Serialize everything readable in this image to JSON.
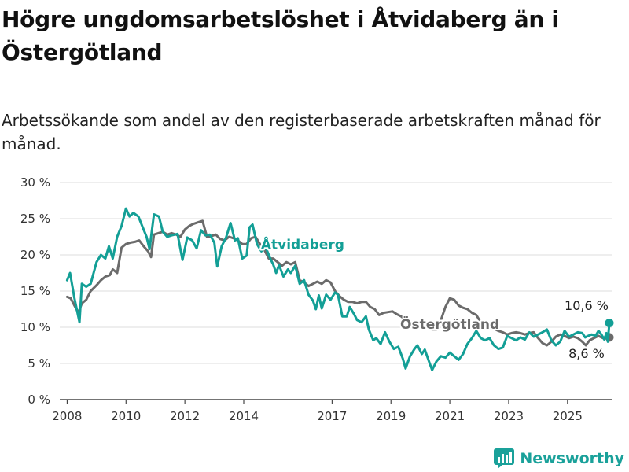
{
  "title": "Högre ungdomsarbetslöshet i Åtvidaberg än i Östergötland",
  "subtitle": "Arbetssökande som andel av den registerbaserade arbetskraften månad för månad.",
  "brand": "Newsworthy",
  "colors": {
    "atvidaberg": "#139f96",
    "ostergotland": "#6b6b6b",
    "grid": "#dddddd",
    "brand": "#1aa19a"
  },
  "chart_data": {
    "type": "line",
    "title": "Högre ungdomsarbetslöshet i Åtvidaberg än i Östergötland",
    "subtitle": "Arbetssökande som andel av den registerbaserade arbetskraften månad för månad.",
    "xlabel": "",
    "ylabel": "",
    "y_unit": "%",
    "ylim": [
      0,
      30
    ],
    "xlim": [
      2007.75,
      2026.5
    ],
    "y_ticks": [
      0,
      5,
      10,
      15,
      20,
      25,
      30
    ],
    "y_tick_labels": [
      "0 %",
      "5 %",
      "10 %",
      "15 %",
      "20 %",
      "25 %",
      "30 %"
    ],
    "x_ticks": [
      2008,
      2010,
      2012,
      2014,
      2017,
      2019,
      2021,
      2023,
      2025
    ],
    "x_tick_labels": [
      "2008",
      "2010",
      "2012",
      "2014",
      "2017",
      "2019",
      "2021",
      "2023",
      "2025"
    ],
    "grid": "horizontal",
    "legend": "inline labels",
    "series": [
      {
        "name": "Åtvidaberg",
        "color": "#139f96",
        "end_label": "10,6 %",
        "points": [
          [
            2008.0,
            16.5
          ],
          [
            2008.1,
            17.5
          ],
          [
            2008.25,
            14.0
          ],
          [
            2008.42,
            10.7
          ],
          [
            2008.5,
            16.0
          ],
          [
            2008.65,
            15.6
          ],
          [
            2008.8,
            16.0
          ],
          [
            2009.0,
            19.0
          ],
          [
            2009.15,
            20.0
          ],
          [
            2009.3,
            19.5
          ],
          [
            2009.42,
            21.2
          ],
          [
            2009.55,
            19.5
          ],
          [
            2009.7,
            22.5
          ],
          [
            2009.85,
            24.0
          ],
          [
            2010.0,
            26.4
          ],
          [
            2010.12,
            25.3
          ],
          [
            2010.25,
            25.8
          ],
          [
            2010.42,
            25.3
          ],
          [
            2010.55,
            24.0
          ],
          [
            2010.7,
            22.5
          ],
          [
            2010.8,
            20.8
          ],
          [
            2010.95,
            25.6
          ],
          [
            2011.12,
            25.3
          ],
          [
            2011.25,
            23.2
          ],
          [
            2011.4,
            22.5
          ],
          [
            2011.55,
            22.7
          ],
          [
            2011.75,
            22.9
          ],
          [
            2011.92,
            19.3
          ],
          [
            2012.08,
            22.4
          ],
          [
            2012.25,
            22.0
          ],
          [
            2012.4,
            20.9
          ],
          [
            2012.55,
            23.4
          ],
          [
            2012.7,
            22.7
          ],
          [
            2012.85,
            22.8
          ],
          [
            2013.0,
            21.7
          ],
          [
            2013.1,
            18.4
          ],
          [
            2013.25,
            21.2
          ],
          [
            2013.4,
            22.4
          ],
          [
            2013.55,
            24.4
          ],
          [
            2013.7,
            22.0
          ],
          [
            2013.8,
            22.3
          ],
          [
            2013.95,
            19.5
          ],
          [
            2014.1,
            19.9
          ],
          [
            2014.2,
            23.8
          ],
          [
            2014.3,
            24.2
          ],
          [
            2014.45,
            21.5
          ],
          [
            2014.6,
            20.5
          ],
          [
            2014.75,
            21.0
          ],
          [
            2014.9,
            19.5
          ],
          [
            2015.0,
            18.7
          ],
          [
            2015.1,
            17.5
          ],
          [
            2015.2,
            18.6
          ],
          [
            2015.35,
            17.0
          ],
          [
            2015.5,
            18.0
          ],
          [
            2015.6,
            17.5
          ],
          [
            2015.75,
            18.5
          ],
          [
            2015.9,
            16.0
          ],
          [
            2016.05,
            16.5
          ],
          [
            2016.2,
            14.5
          ],
          [
            2016.35,
            13.7
          ],
          [
            2016.45,
            12.5
          ],
          [
            2016.55,
            14.4
          ],
          [
            2016.65,
            12.6
          ],
          [
            2016.8,
            14.5
          ],
          [
            2016.95,
            13.8
          ],
          [
            2017.1,
            14.8
          ],
          [
            2017.2,
            14.5
          ],
          [
            2017.35,
            11.5
          ],
          [
            2017.5,
            11.5
          ],
          [
            2017.6,
            12.8
          ],
          [
            2017.75,
            11.8
          ],
          [
            2017.85,
            11.0
          ],
          [
            2018.0,
            10.7
          ],
          [
            2018.15,
            11.5
          ],
          [
            2018.25,
            9.7
          ],
          [
            2018.4,
            8.2
          ],
          [
            2018.5,
            8.5
          ],
          [
            2018.65,
            7.7
          ],
          [
            2018.8,
            9.3
          ],
          [
            2018.95,
            8.0
          ],
          [
            2019.1,
            7.0
          ],
          [
            2019.25,
            7.3
          ],
          [
            2019.4,
            5.7
          ],
          [
            2019.5,
            4.3
          ],
          [
            2019.65,
            6.0
          ],
          [
            2019.8,
            7.0
          ],
          [
            2019.9,
            7.5
          ],
          [
            2020.05,
            6.3
          ],
          [
            2020.15,
            6.9
          ],
          [
            2020.3,
            5.2
          ],
          [
            2020.4,
            4.1
          ],
          [
            2020.55,
            5.3
          ],
          [
            2020.7,
            6.0
          ],
          [
            2020.85,
            5.8
          ],
          [
            2021.0,
            6.5
          ],
          [
            2021.15,
            6.0
          ],
          [
            2021.3,
            5.5
          ],
          [
            2021.45,
            6.3
          ],
          [
            2021.6,
            7.7
          ],
          [
            2021.75,
            8.5
          ],
          [
            2021.9,
            9.5
          ],
          [
            2022.05,
            8.5
          ],
          [
            2022.2,
            8.2
          ],
          [
            2022.35,
            8.5
          ],
          [
            2022.5,
            7.5
          ],
          [
            2022.65,
            7.0
          ],
          [
            2022.8,
            7.2
          ],
          [
            2022.95,
            8.8
          ],
          [
            2023.1,
            8.5
          ],
          [
            2023.25,
            8.2
          ],
          [
            2023.4,
            8.6
          ],
          [
            2023.55,
            8.3
          ],
          [
            2023.7,
            9.3
          ],
          [
            2023.85,
            8.7
          ],
          [
            2024.0,
            9.0
          ],
          [
            2024.15,
            9.3
          ],
          [
            2024.3,
            9.7
          ],
          [
            2024.45,
            8.2
          ],
          [
            2024.6,
            7.5
          ],
          [
            2024.75,
            8.0
          ],
          [
            2024.9,
            9.5
          ],
          [
            2025.05,
            8.7
          ],
          [
            2025.2,
            9.0
          ],
          [
            2025.35,
            9.3
          ],
          [
            2025.5,
            9.2
          ],
          [
            2025.6,
            8.6
          ],
          [
            2025.7,
            8.8
          ],
          [
            2025.82,
            9.0
          ],
          [
            2025.95,
            8.8
          ],
          [
            2026.05,
            9.5
          ],
          [
            2026.15,
            9.0
          ],
          [
            2026.25,
            8.3
          ],
          [
            2026.32,
            9.2
          ],
          [
            2026.37,
            8.0
          ],
          [
            2026.42,
            10.6
          ]
        ]
      },
      {
        "name": "Östergötland",
        "color": "#6b6b6b",
        "end_label": "8,6 %",
        "points": [
          [
            2008.0,
            14.2
          ],
          [
            2008.12,
            14.0
          ],
          [
            2008.25,
            13.0
          ],
          [
            2008.38,
            12.0
          ],
          [
            2008.5,
            13.3
          ],
          [
            2008.65,
            13.8
          ],
          [
            2008.8,
            15.0
          ],
          [
            2009.0,
            15.8
          ],
          [
            2009.15,
            16.5
          ],
          [
            2009.3,
            17.0
          ],
          [
            2009.45,
            17.2
          ],
          [
            2009.55,
            18.0
          ],
          [
            2009.7,
            17.5
          ],
          [
            2009.85,
            21.0
          ],
          [
            2010.0,
            21.5
          ],
          [
            2010.15,
            21.7
          ],
          [
            2010.3,
            21.8
          ],
          [
            2010.45,
            22.0
          ],
          [
            2010.6,
            21.2
          ],
          [
            2010.75,
            20.5
          ],
          [
            2010.85,
            19.7
          ],
          [
            2010.95,
            22.8
          ],
          [
            2011.1,
            23.0
          ],
          [
            2011.25,
            23.2
          ],
          [
            2011.4,
            22.8
          ],
          [
            2011.55,
            23.0
          ],
          [
            2011.7,
            22.8
          ],
          [
            2011.85,
            22.5
          ],
          [
            2012.0,
            23.5
          ],
          [
            2012.15,
            24.0
          ],
          [
            2012.3,
            24.3
          ],
          [
            2012.45,
            24.5
          ],
          [
            2012.6,
            24.7
          ],
          [
            2012.75,
            22.5
          ],
          [
            2012.9,
            22.6
          ],
          [
            2013.05,
            22.8
          ],
          [
            2013.2,
            22.2
          ],
          [
            2013.35,
            22.0
          ],
          [
            2013.5,
            22.5
          ],
          [
            2013.65,
            22.3
          ],
          [
            2013.8,
            22.0
          ],
          [
            2013.95,
            21.5
          ],
          [
            2014.1,
            21.5
          ],
          [
            2014.25,
            22.3
          ],
          [
            2014.4,
            22.5
          ],
          [
            2014.55,
            21.5
          ],
          [
            2014.7,
            20.7
          ],
          [
            2014.85,
            19.5
          ],
          [
            2015.0,
            19.5
          ],
          [
            2015.15,
            19.0
          ],
          [
            2015.3,
            18.5
          ],
          [
            2015.45,
            19.0
          ],
          [
            2015.6,
            18.7
          ],
          [
            2015.75,
            19.0
          ],
          [
            2015.9,
            16.5
          ],
          [
            2016.05,
            16.2
          ],
          [
            2016.2,
            15.7
          ],
          [
            2016.35,
            16.0
          ],
          [
            2016.5,
            16.3
          ],
          [
            2016.65,
            16.0
          ],
          [
            2016.8,
            16.5
          ],
          [
            2016.95,
            16.2
          ],
          [
            2017.1,
            15.0
          ],
          [
            2017.25,
            14.3
          ],
          [
            2017.4,
            13.8
          ],
          [
            2017.55,
            13.5
          ],
          [
            2017.7,
            13.5
          ],
          [
            2017.85,
            13.3
          ],
          [
            2018.0,
            13.5
          ],
          [
            2018.15,
            13.5
          ],
          [
            2018.3,
            12.8
          ],
          [
            2018.45,
            12.5
          ],
          [
            2018.6,
            11.7
          ],
          [
            2018.75,
            12.0
          ],
          [
            2018.9,
            12.1
          ],
          [
            2019.05,
            12.2
          ],
          [
            2019.2,
            11.8
          ],
          [
            2019.35,
            11.5
          ],
          [
            2019.5,
            11.0
          ],
          [
            2019.65,
            10.8
          ],
          [
            2019.8,
            10.3
          ],
          [
            2019.95,
            10.0
          ],
          [
            2020.1,
            10.3
          ],
          [
            2020.25,
            10.0
          ],
          [
            2020.4,
            9.7
          ],
          [
            2020.55,
            9.7
          ],
          [
            2020.7,
            11.0
          ],
          [
            2020.85,
            12.8
          ],
          [
            2021.0,
            14.0
          ],
          [
            2021.15,
            13.8
          ],
          [
            2021.3,
            13.0
          ],
          [
            2021.45,
            12.7
          ],
          [
            2021.6,
            12.5
          ],
          [
            2021.75,
            12.0
          ],
          [
            2021.9,
            11.7
          ],
          [
            2022.05,
            10.7
          ],
          [
            2022.2,
            10.5
          ],
          [
            2022.35,
            10.3
          ],
          [
            2022.5,
            9.8
          ],
          [
            2022.65,
            9.5
          ],
          [
            2022.8,
            9.3
          ],
          [
            2022.95,
            9.0
          ],
          [
            2023.1,
            9.2
          ],
          [
            2023.25,
            9.3
          ],
          [
            2023.4,
            9.2
          ],
          [
            2023.55,
            9.0
          ],
          [
            2023.7,
            9.2
          ],
          [
            2023.85,
            9.3
          ],
          [
            2024.0,
            8.5
          ],
          [
            2024.15,
            7.8
          ],
          [
            2024.3,
            7.5
          ],
          [
            2024.45,
            8.0
          ],
          [
            2024.6,
            8.7
          ],
          [
            2024.75,
            9.0
          ],
          [
            2024.9,
            8.8
          ],
          [
            2025.05,
            8.5
          ],
          [
            2025.2,
            8.7
          ],
          [
            2025.35,
            8.5
          ],
          [
            2025.5,
            8.0
          ],
          [
            2025.62,
            7.5
          ],
          [
            2025.75,
            8.2
          ],
          [
            2025.9,
            8.5
          ],
          [
            2026.05,
            8.8
          ],
          [
            2026.2,
            8.5
          ],
          [
            2026.3,
            8.7
          ],
          [
            2026.42,
            8.6
          ]
        ]
      }
    ]
  }
}
